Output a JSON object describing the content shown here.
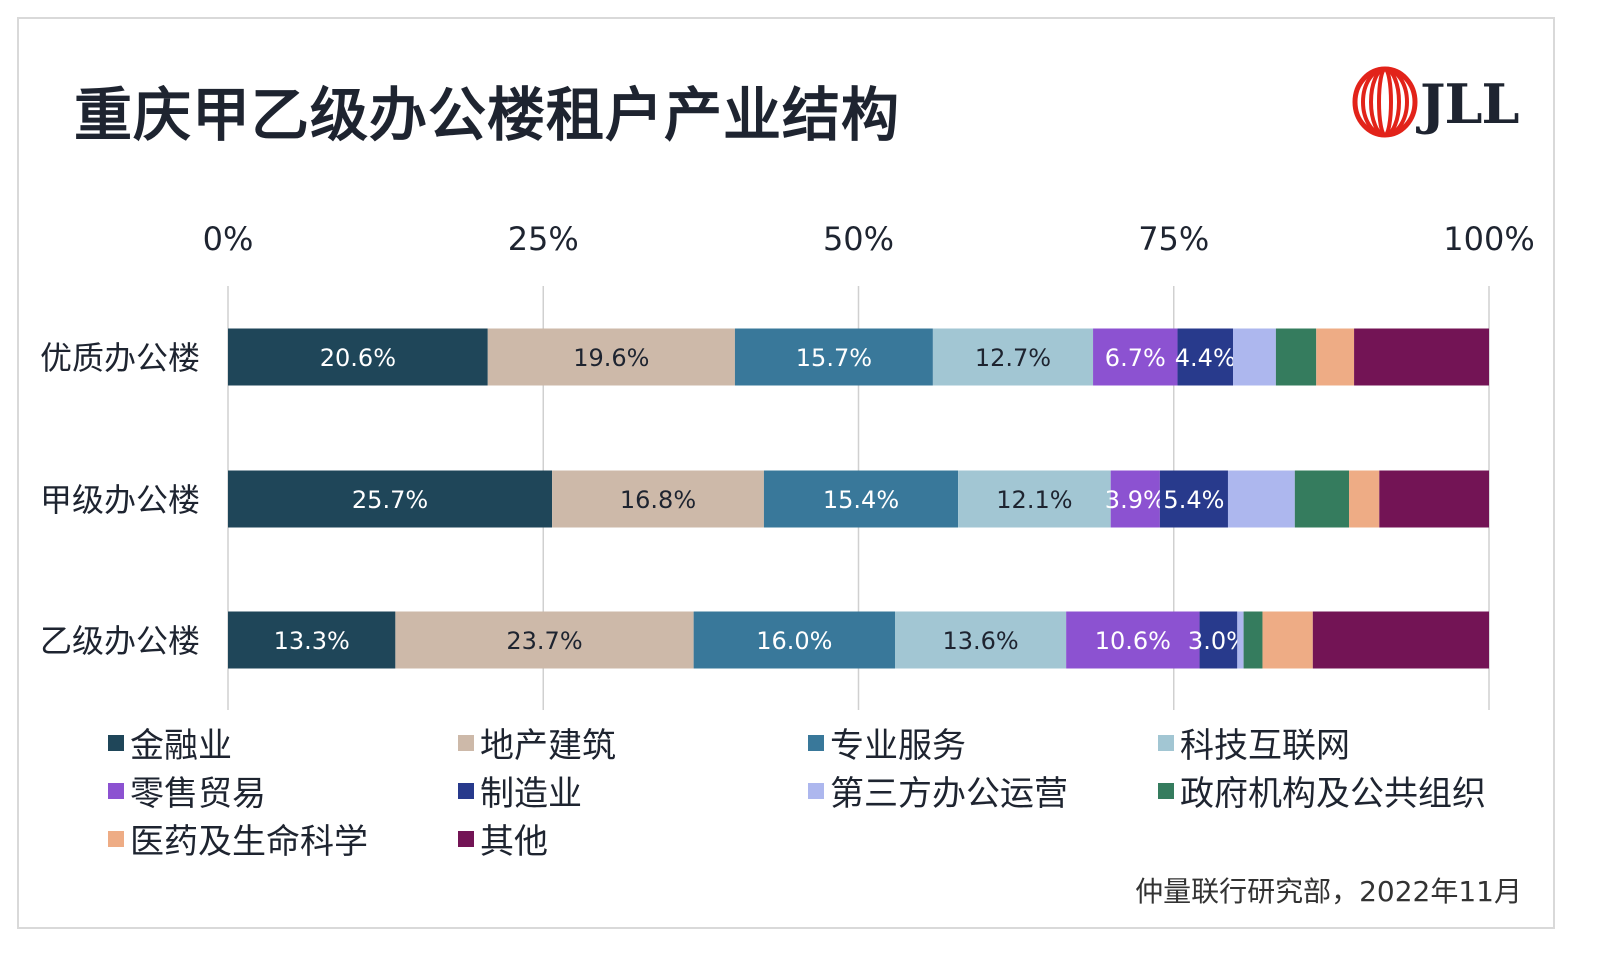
{
  "title": "重庆甲乙级办公楼租户产业结构",
  "logo": {
    "text": "JLL"
  },
  "source": "仲量联行研究部，2022年11月",
  "colors": {
    "金融业": "#1f4659",
    "地产建筑": "#cdb9a9",
    "专业服务": "#39789a",
    "科技互联网": "#a2c6d3",
    "零售贸易": "#8c52d1",
    "制造业": "#283a8c",
    "第三方办公运营": "#adb7ee",
    "政府机构及公共组织": "#357c5e",
    "医药及生命科学": "#eeac85",
    "其他": "#731455"
  },
  "chart_data": {
    "type": "bar",
    "orientation": "horizontal",
    "stacked": "percent",
    "categories": [
      "优质办公楼",
      "甲级办公楼",
      "乙级办公楼"
    ],
    "xlim": [
      0,
      100
    ],
    "xticks": [
      "0%",
      "25%",
      "50%",
      "75%",
      "100%"
    ],
    "grid": true,
    "legend_position": "bottom",
    "series": [
      {
        "name": "金融业",
        "values": [
          20.6,
          25.7,
          13.3
        ],
        "labels": [
          "20.6%",
          "25.7%",
          "13.3%"
        ]
      },
      {
        "name": "地产建筑",
        "values": [
          19.6,
          16.8,
          23.7
        ],
        "labels": [
          "19.6%",
          "16.8%",
          "23.7%"
        ]
      },
      {
        "name": "专业服务",
        "values": [
          15.7,
          15.4,
          16.0
        ],
        "labels": [
          "15.7%",
          "15.4%",
          "16.0%"
        ]
      },
      {
        "name": "科技互联网",
        "values": [
          12.7,
          12.1,
          13.6
        ],
        "labels": [
          "12.7%",
          "12.1%",
          "13.6%"
        ]
      },
      {
        "name": "零售贸易",
        "values": [
          6.7,
          3.9,
          10.6
        ],
        "labels": [
          "6.7%",
          "3.9%",
          "10.6%"
        ]
      },
      {
        "name": "制造业",
        "values": [
          4.4,
          5.4,
          3.0
        ],
        "labels": [
          "4.4%",
          "5.4%",
          "3.0%"
        ]
      },
      {
        "name": "第三方办公运营",
        "values": [
          3.4,
          5.3,
          0.5
        ],
        "labels": [
          "",
          "",
          ""
        ]
      },
      {
        "name": "政府机构及公共组织",
        "values": [
          3.2,
          4.3,
          1.5
        ],
        "labels": [
          "",
          "",
          ""
        ]
      },
      {
        "name": "医药及生命科学",
        "values": [
          3.0,
          2.4,
          4.0
        ],
        "labels": [
          "",
          "",
          ""
        ]
      },
      {
        "name": "其他",
        "values": [
          10.7,
          8.7,
          14.0
        ],
        "labels": [
          "",
          "",
          ""
        ]
      }
    ]
  }
}
